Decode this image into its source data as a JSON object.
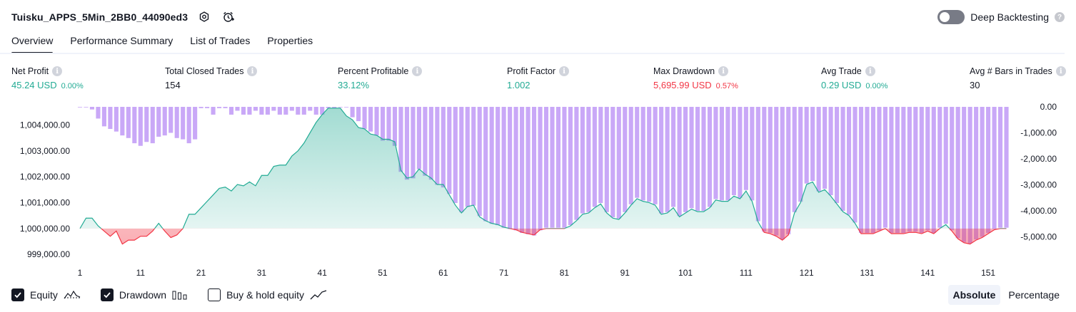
{
  "header": {
    "strategy_name": "Tuisku_APPS_5Min_2BB0_44090ed3",
    "deep_backtesting_label": "Deep Backtesting",
    "deep_backtesting_enabled": false
  },
  "tabs": [
    {
      "label": "Overview",
      "active": true
    },
    {
      "label": "Performance Summary",
      "active": false
    },
    {
      "label": "List of Trades",
      "active": false
    },
    {
      "label": "Properties",
      "active": false
    }
  ],
  "metrics": {
    "net_profit": {
      "label": "Net Profit",
      "value": "45.24 USD",
      "pct": "0.00%"
    },
    "total_closed_trades": {
      "label": "Total Closed Trades",
      "value": "154"
    },
    "percent_profitable": {
      "label": "Percent Profitable",
      "value": "33.12%"
    },
    "profit_factor": {
      "label": "Profit Factor",
      "value": "1.002"
    },
    "max_drawdown": {
      "label": "Max Drawdown",
      "value": "5,695.99 USD",
      "pct": "0.57%"
    },
    "avg_trade": {
      "label": "Avg Trade",
      "value": "0.29 USD",
      "pct": "0.00%"
    },
    "avg_bars": {
      "label": "Avg # Bars in Trades",
      "value": "30"
    }
  },
  "colors": {
    "profit": "#22ab94",
    "loss": "#f23645",
    "drawdown_bar": "#c9a8f7",
    "equity_fill": "#cdeee5"
  },
  "chart_data": {
    "type": "area",
    "left_axis": {
      "ticks": [
        1004000,
        1003000,
        1002000,
        1001000,
        1000000,
        999000
      ],
      "tick_labels": [
        "1,004,000.00",
        "1,003,000.00",
        "1,002,000.00",
        "1,001,000.00",
        "1,000,000.00",
        "999,000.00"
      ],
      "ylim": [
        998700,
        1004700
      ]
    },
    "right_axis": {
      "ticks": [
        0,
        -1000,
        -2000,
        -3000,
        -4000,
        -5000
      ],
      "tick_labels": [
        "0.00",
        "-1,000.00",
        "-2,000.00",
        "-3,000.00",
        "-4,000.00",
        "-5,000.00"
      ],
      "ylim": [
        -5700,
        0
      ]
    },
    "x_axis": {
      "ticks": [
        1,
        11,
        21,
        31,
        41,
        51,
        61,
        71,
        81,
        91,
        101,
        111,
        121,
        131,
        141,
        151
      ],
      "tick_labels": [
        "1",
        "11",
        "21",
        "31",
        "41",
        "51",
        "61",
        "71",
        "81",
        "91",
        "101",
        "111",
        "121",
        "131",
        "141",
        "151"
      ],
      "range": [
        1,
        155
      ]
    },
    "baseline": 1000000,
    "series": [
      {
        "name": "Equity",
        "x_start": 1,
        "values": [
          1000000,
          1000400,
          1000400,
          1000100,
          999900,
          999700,
          999900,
          999400,
          999550,
          999550,
          999700,
          999700,
          999900,
          1000200,
          999900,
          999650,
          999750,
          1000000,
          1000550,
          1000550,
          1000800,
          1001050,
          1001300,
          1001550,
          1001600,
          1001450,
          1001700,
          1001650,
          1001800,
          1001650,
          1002050,
          1002050,
          1002400,
          1002450,
          1002450,
          1002800,
          1003000,
          1003300,
          1003700,
          1004100,
          1004400,
          1004650,
          1004650,
          1004650,
          1004350,
          1004200,
          1003900,
          1003850,
          1003650,
          1003600,
          1003450,
          1003450,
          1003350,
          1002250,
          1001950,
          1002000,
          1002300,
          1002100,
          1001950,
          1001700,
          1001700,
          1001300,
          1000900,
          1000600,
          1000850,
          1000900,
          1000450,
          1000300,
          1000200,
          1000150,
          1000050,
          1000000,
          999950,
          999850,
          999800,
          999750,
          999950,
          1000000,
          1000000,
          1000000,
          1000000,
          1000100,
          1000300,
          1000550,
          1000600,
          1000800,
          1000950,
          1000600,
          1000400,
          1000350,
          1000600,
          1000900,
          1001150,
          1001050,
          1001000,
          1000900,
          1000550,
          1000600,
          1000800,
          1000450,
          1000600,
          1000750,
          1000650,
          1000650,
          1000800,
          1001100,
          1001050,
          1001050,
          1001250,
          1001150,
          1001450,
          1001050,
          1000250,
          999850,
          999800,
          999700,
          999550,
          999750,
          1000600,
          1001000,
          1001700,
          1001800,
          1001400,
          1001500,
          1001250,
          1000950,
          1000650,
          1000500,
          1000200,
          999800,
          999800,
          999800,
          999900,
          1000000,
          999800,
          999800,
          999800,
          999850,
          999850,
          999800,
          999900,
          999800,
          1000000,
          1000150,
          999900,
          999600,
          999450,
          999400,
          999550,
          999650,
          999800,
          999950,
          1000000,
          1000000
        ]
      },
      {
        "name": "Drawdown",
        "x_start": 1,
        "values": [
          0,
          0,
          -100,
          -450,
          -750,
          -850,
          -950,
          -1100,
          -1200,
          -1400,
          -1500,
          -1350,
          -1400,
          -1150,
          -1100,
          -1000,
          -1200,
          -1250,
          -1400,
          -1250,
          -50,
          -50,
          -300,
          -50,
          -50,
          -300,
          -150,
          -300,
          -300,
          -150,
          -300,
          -300,
          -150,
          -300,
          -300,
          -150,
          -300,
          -300,
          -150,
          -300,
          -300,
          -50,
          -50,
          0,
          0,
          -400,
          -550,
          -850,
          -950,
          -1100,
          -1300,
          -1300,
          -1500,
          -2500,
          -2800,
          -2750,
          -2400,
          -2650,
          -2800,
          -3000,
          -3100,
          -3350,
          -3700,
          -4050,
          -3850,
          -3800,
          -4200,
          -4400,
          -4500,
          -4550,
          -4650,
          -4700,
          -4750,
          -4850,
          -4900,
          -4950,
          -4750,
          -4650,
          -4650,
          -4650,
          -4650,
          -4550,
          -4350,
          -4100,
          -4050,
          -3850,
          -3700,
          -4050,
          -4250,
          -4300,
          -4050,
          -3750,
          -3500,
          -3600,
          -3650,
          -3750,
          -4100,
          -4050,
          -3850,
          -4200,
          -4050,
          -3900,
          -4000,
          -4000,
          -3850,
          -3550,
          -3600,
          -3600,
          -3400,
          -3500,
          -3200,
          -3600,
          -4400,
          -4800,
          -4850,
          -4950,
          -5100,
          -4900,
          -4050,
          -3650,
          -2950,
          -2850,
          -3250,
          -3150,
          -3400,
          -3700,
          -4000,
          -4150,
          -4450,
          -4850,
          -4850,
          -4850,
          -4750,
          -4650,
          -4850,
          -4850,
          -4850,
          -4800,
          -4800,
          -4850,
          -4750,
          -4850,
          -4650,
          -4500,
          -4750,
          -5050,
          -5200,
          -5250,
          -5100,
          -5000,
          -4850,
          -4700,
          -4650,
          -4650
        ]
      }
    ]
  },
  "legend": {
    "items": [
      {
        "label": "Equity",
        "checked": true,
        "glyph": "equity-line-icon"
      },
      {
        "label": "Drawdown",
        "checked": true,
        "glyph": "drawdown-bars-icon"
      },
      {
        "label": "Buy & hold equity",
        "checked": false,
        "glyph": "buy-hold-line-icon"
      }
    ]
  },
  "view_modes": [
    {
      "label": "Absolute",
      "active": true
    },
    {
      "label": "Percentage",
      "active": false
    }
  ]
}
